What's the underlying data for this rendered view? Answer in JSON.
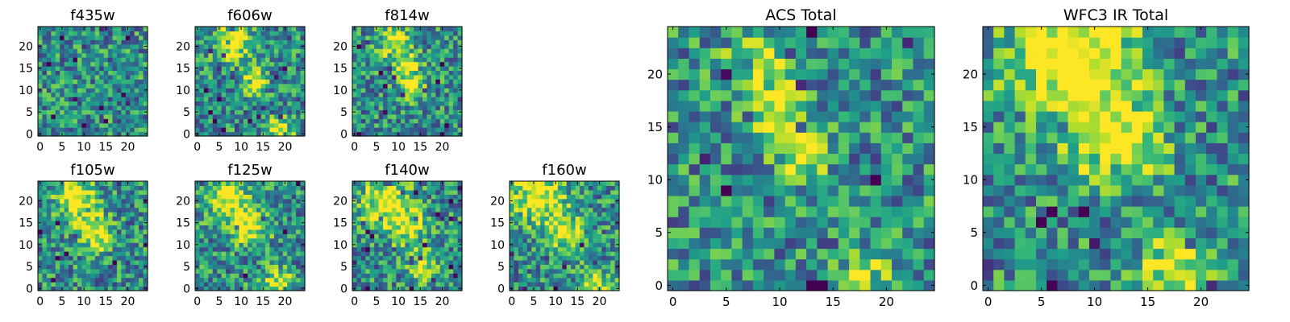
{
  "chart_data": [
    {
      "type": "heatmap",
      "title": "f435w",
      "xticks": [
        "0",
        "5",
        "10",
        "15",
        "20"
      ],
      "yticks": [
        "0",
        "5",
        "10",
        "15",
        "20"
      ],
      "grid_size": [
        25,
        25
      ],
      "xlim": [
        0,
        24
      ],
      "ylim": [
        0,
        24
      ],
      "colormap": "viridis",
      "seed": 11,
      "features": []
    },
    {
      "type": "heatmap",
      "title": "f606w",
      "xticks": [
        "0",
        "5",
        "10",
        "15",
        "20"
      ],
      "yticks": [
        "0",
        "5",
        "10",
        "15",
        "20"
      ],
      "grid_size": [
        25,
        25
      ],
      "xlim": [
        0,
        24
      ],
      "ylim": [
        0,
        24
      ],
      "colormap": "viridis",
      "seed": 23,
      "features": [
        [
          8,
          21,
          3.0,
          0.55
        ],
        [
          13,
          12,
          2.0,
          0.5
        ],
        [
          19,
          1,
          2.0,
          0.5
        ]
      ]
    },
    {
      "type": "heatmap",
      "title": "f814w",
      "xticks": [
        "0",
        "5",
        "10",
        "15",
        "20"
      ],
      "yticks": [
        "0",
        "5",
        "10",
        "15",
        "20"
      ],
      "grid_size": [
        25,
        25
      ],
      "xlim": [
        0,
        24
      ],
      "ylim": [
        0,
        24
      ],
      "colormap": "viridis",
      "seed": 37,
      "features": [
        [
          9,
          21,
          2.5,
          0.5
        ],
        [
          12,
          16,
          2.0,
          0.45
        ],
        [
          13,
          11,
          2.0,
          0.55
        ]
      ]
    },
    {
      "type": "heatmap",
      "title": "f105w",
      "xticks": [
        "0",
        "5",
        "10",
        "15",
        "20"
      ],
      "yticks": [
        "0",
        "5",
        "10",
        "15",
        "20"
      ],
      "grid_size": [
        25,
        25
      ],
      "xlim": [
        0,
        24
      ],
      "ylim": [
        0,
        24
      ],
      "colormap": "viridis",
      "seed": 41,
      "features": [
        [
          8,
          21,
          3.0,
          0.6
        ],
        [
          12,
          15,
          2.5,
          0.5
        ],
        [
          13,
          10,
          2.0,
          0.4
        ]
      ]
    },
    {
      "type": "heatmap",
      "title": "f125w",
      "xticks": [
        "0",
        "5",
        "10",
        "15",
        "20"
      ],
      "yticks": [
        "0",
        "5",
        "10",
        "15",
        "20"
      ],
      "grid_size": [
        25,
        25
      ],
      "xlim": [
        0,
        24
      ],
      "ylim": [
        0,
        24
      ],
      "colormap": "viridis",
      "seed": 53,
      "features": [
        [
          7,
          21,
          3.5,
          0.55
        ],
        [
          12,
          14,
          3.0,
          0.5
        ],
        [
          18,
          1,
          2.5,
          0.5
        ]
      ]
    },
    {
      "type": "heatmap",
      "title": "f140w",
      "xticks": [
        "0",
        "5",
        "10",
        "15",
        "20"
      ],
      "yticks": [
        "0",
        "5",
        "10",
        "15",
        "20"
      ],
      "grid_size": [
        25,
        25
      ],
      "xlim": [
        0,
        24
      ],
      "ylim": [
        0,
        24
      ],
      "colormap": "viridis",
      "seed": 67,
      "features": [
        [
          7,
          20,
          4.0,
          0.55
        ],
        [
          12,
          14,
          3.0,
          0.45
        ],
        [
          16,
          5,
          2.5,
          0.4
        ]
      ]
    },
    {
      "type": "heatmap",
      "title": "f160w",
      "xticks": [
        "0",
        "5",
        "10",
        "15",
        "20"
      ],
      "yticks": [
        "0",
        "5",
        "10",
        "15",
        "20"
      ],
      "grid_size": [
        25,
        25
      ],
      "xlim": [
        0,
        24
      ],
      "ylim": [
        0,
        24
      ],
      "colormap": "viridis",
      "seed": 79,
      "features": [
        [
          6,
          21,
          4.0,
          0.6
        ],
        [
          12,
          13,
          3.0,
          0.5
        ],
        [
          19,
          1,
          2.5,
          0.5
        ]
      ]
    },
    {
      "type": "heatmap",
      "title": "ACS Total",
      "xticks": [
        "0",
        "5",
        "10",
        "15",
        "20"
      ],
      "yticks": [
        "0",
        "5",
        "10",
        "15",
        "20"
      ],
      "grid_size": [
        25,
        25
      ],
      "xlim": [
        0,
        24
      ],
      "ylim": [
        0,
        24
      ],
      "colormap": "viridis",
      "seed": 97,
      "features": [
        [
          8,
          21,
          2.0,
          0.5
        ],
        [
          10,
          16,
          1.8,
          0.4
        ],
        [
          12,
          12,
          1.5,
          0.55
        ],
        [
          18,
          1,
          1.5,
          0.4
        ]
      ]
    },
    {
      "type": "heatmap",
      "title": "WFC3 IR Total",
      "xticks": [
        "0",
        "5",
        "10",
        "15",
        "20"
      ],
      "yticks": [
        "0",
        "5",
        "10",
        "15",
        "20"
      ],
      "grid_size": [
        25,
        25
      ],
      "xlim": [
        0,
        24
      ],
      "ylim": [
        0,
        24
      ],
      "colormap": "viridis",
      "seed": 101,
      "features": [
        [
          8,
          22,
          4.0,
          0.75
        ],
        [
          12,
          14,
          3.0,
          0.55
        ],
        [
          18,
          1,
          2.5,
          0.5
        ]
      ]
    }
  ]
}
